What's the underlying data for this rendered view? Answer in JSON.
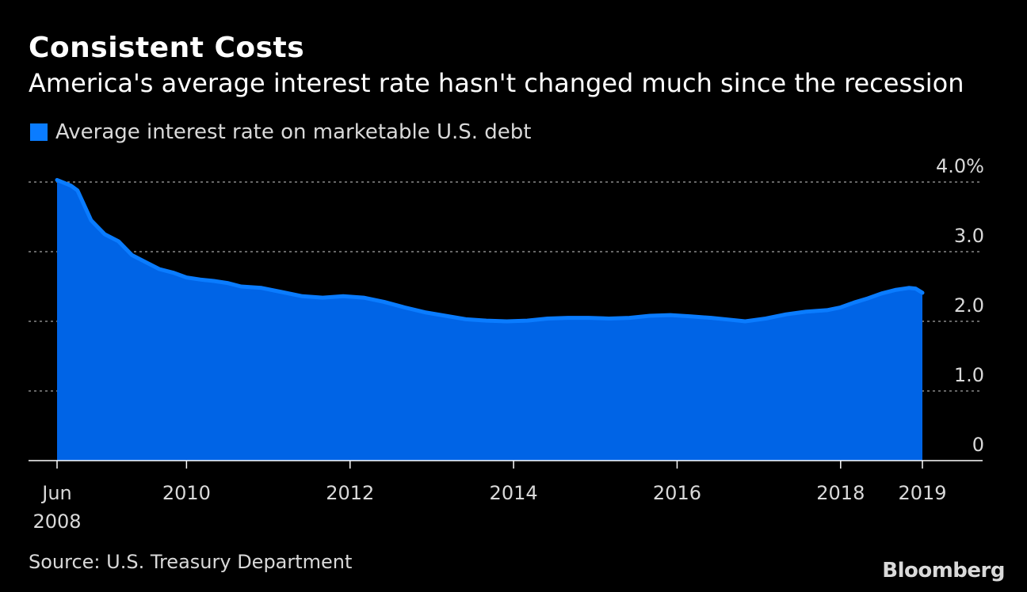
{
  "header": {
    "title": "Consistent Costs",
    "subtitle": "America's average interest rate hasn't changed much since the recession"
  },
  "footer": {
    "source": "Source: U.S. Treasury Department",
    "brand": "Bloomberg"
  },
  "colors": {
    "background": "#000000",
    "area_fill": "#0064e6",
    "line": "#0a7cff",
    "grid": "#888888",
    "text": "#d9d9d9"
  },
  "chart_data": {
    "type": "area",
    "title": "Consistent Costs",
    "subtitle": "America's average interest rate hasn't changed much since the recession",
    "xlabel": "",
    "ylabel": "",
    "ylim": [
      0,
      4.0
    ],
    "xlim": [
      "2008-06",
      "2019-01"
    ],
    "grid": true,
    "legend_position": "top-left",
    "y_ticks": [
      {
        "value": 0,
        "label": "0"
      },
      {
        "value": 1,
        "label": "1.0"
      },
      {
        "value": 2,
        "label": "2.0"
      },
      {
        "value": 3,
        "label": "3.0"
      },
      {
        "value": 4,
        "label": "4.0%"
      }
    ],
    "x_ticks": [
      {
        "x": "2008-06",
        "label": "Jun",
        "label2": "2008"
      },
      {
        "x": "2010-01",
        "label": "2010"
      },
      {
        "x": "2012-01",
        "label": "2012"
      },
      {
        "x": "2014-01",
        "label": "2014"
      },
      {
        "x": "2016-01",
        "label": "2016"
      },
      {
        "x": "2018-01",
        "label": "2018"
      },
      {
        "x": "2019-01",
        "label": "2019"
      }
    ],
    "series": [
      {
        "name": "Average interest rate on marketable U.S. debt",
        "points": [
          [
            "2008-06",
            4.03
          ],
          [
            "2008-08",
            3.95
          ],
          [
            "2008-09",
            3.88
          ],
          [
            "2008-11",
            3.45
          ],
          [
            "2009-01",
            3.25
          ],
          [
            "2009-03",
            3.15
          ],
          [
            "2009-05",
            2.95
          ],
          [
            "2009-07",
            2.85
          ],
          [
            "2009-09",
            2.75
          ],
          [
            "2009-11",
            2.7
          ],
          [
            "2010-01",
            2.63
          ],
          [
            "2010-03",
            2.6
          ],
          [
            "2010-05",
            2.58
          ],
          [
            "2010-07",
            2.55
          ],
          [
            "2010-09",
            2.5
          ],
          [
            "2010-12",
            2.48
          ],
          [
            "2011-03",
            2.42
          ],
          [
            "2011-06",
            2.36
          ],
          [
            "2011-09",
            2.34
          ],
          [
            "2011-12",
            2.36
          ],
          [
            "2012-03",
            2.34
          ],
          [
            "2012-06",
            2.28
          ],
          [
            "2012-09",
            2.2
          ],
          [
            "2012-12",
            2.13
          ],
          [
            "2013-03",
            2.08
          ],
          [
            "2013-06",
            2.03
          ],
          [
            "2013-09",
            2.01
          ],
          [
            "2013-12",
            2.0
          ],
          [
            "2014-03",
            2.01
          ],
          [
            "2014-06",
            2.04
          ],
          [
            "2014-09",
            2.05
          ],
          [
            "2014-12",
            2.05
          ],
          [
            "2015-03",
            2.04
          ],
          [
            "2015-06",
            2.05
          ],
          [
            "2015-09",
            2.08
          ],
          [
            "2015-12",
            2.09
          ],
          [
            "2016-03",
            2.07
          ],
          [
            "2016-06",
            2.05
          ],
          [
            "2016-09",
            2.02
          ],
          [
            "2016-11",
            2.0
          ],
          [
            "2017-02",
            2.04
          ],
          [
            "2017-05",
            2.1
          ],
          [
            "2017-08",
            2.14
          ],
          [
            "2017-11",
            2.16
          ],
          [
            "2018-01",
            2.2
          ],
          [
            "2018-03",
            2.27
          ],
          [
            "2018-05",
            2.33
          ],
          [
            "2018-07",
            2.4
          ],
          [
            "2018-09",
            2.45
          ],
          [
            "2018-11",
            2.48
          ],
          [
            "2018-12",
            2.47
          ],
          [
            "2019-01",
            2.41
          ]
        ]
      }
    ]
  }
}
